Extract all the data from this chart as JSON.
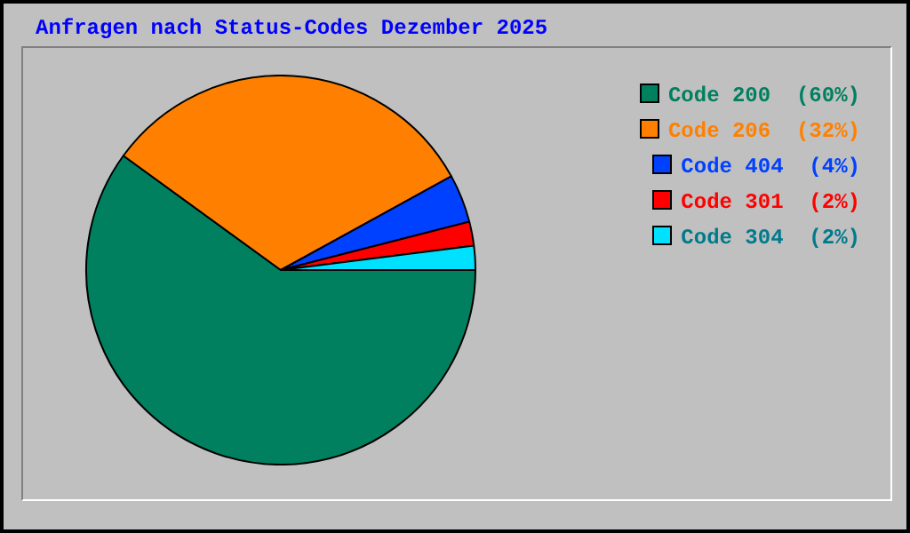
{
  "chart_data": {
    "type": "pie",
    "title": "Anfragen nach Status-Codes Dezember 2025",
    "categories": [
      "Code 200",
      "Code 206",
      "Code 404",
      "Code 301",
      "Code 304"
    ],
    "values": [
      60,
      32,
      4,
      2,
      2
    ],
    "value_labels": [
      "(60%)",
      "(32%)",
      "(4%)",
      "(2%)",
      "(2%)"
    ],
    "colors": [
      "#00805f",
      "#ff8000",
      "#0040ff",
      "#ff0000",
      "#00e0ff"
    ],
    "legend": "top right"
  }
}
